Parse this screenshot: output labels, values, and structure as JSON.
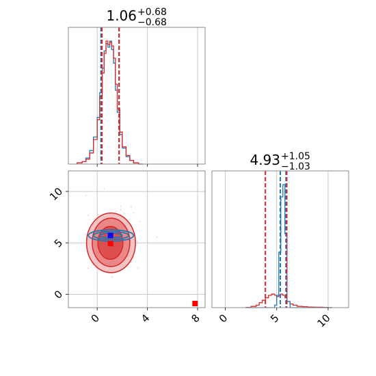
{
  "chart_data": {
    "type": "corner",
    "parameters": [
      "param_0",
      "param_1"
    ],
    "colors": {
      "blue": "#1f77b4",
      "red": "#d62728",
      "marker_blue": "#0000ff",
      "marker_red": "#ff0000",
      "grid": "#c8c8c8"
    },
    "titles": [
      {
        "base": "1.06",
        "sup": "+0.68",
        "sub": "−0.68"
      },
      {
        "base": "4.93",
        "sup": "+1.05",
        "sub": "−1.03"
      }
    ],
    "x_ticks_p0": [
      "0",
      "4",
      "8"
    ],
    "x_ticks_p1": [
      "0",
      "5",
      "10"
    ],
    "y_ticks_p1": [
      "0",
      "5",
      "10"
    ],
    "ranges": {
      "p0": [
        -2.3,
        8.6
      ],
      "p1": [
        -1.3,
        12.0
      ]
    },
    "marginal_p0": {
      "x": [
        -1.6,
        -1.2,
        -0.9,
        -0.6,
        -0.3,
        0.0,
        0.2,
        0.4,
        0.55,
        0.7,
        0.85,
        1.0,
        1.15,
        1.3,
        1.45,
        1.6,
        1.8,
        2.0,
        2.3,
        2.6,
        2.9,
        3.3
      ],
      "series": [
        {
          "name": "",
          "color": "blue",
          "values": [
            0.01,
            0.02,
            0.05,
            0.11,
            0.22,
            0.38,
            0.58,
            0.78,
            0.92,
            0.98,
            0.95,
            1.0,
            0.93,
            0.82,
            0.6,
            0.42,
            0.24,
            0.13,
            0.06,
            0.03,
            0.01,
            0.0
          ]
        },
        {
          "name": "",
          "color": "red",
          "values": [
            0.01,
            0.02,
            0.04,
            0.09,
            0.2,
            0.36,
            0.55,
            0.74,
            0.9,
            1.0,
            0.97,
            0.99,
            0.96,
            0.86,
            0.65,
            0.45,
            0.26,
            0.14,
            0.07,
            0.03,
            0.01,
            0.0
          ]
        }
      ],
      "quantiles": {
        "blue": [
          0.3,
          1.75
        ],
        "red": [
          0.38,
          1.74
        ]
      }
    },
    "marginal_p1": {
      "x": [
        2.0,
        2.5,
        3.0,
        3.3,
        3.6,
        3.9,
        4.2,
        4.5,
        4.8,
        5.0,
        5.2,
        5.4,
        5.6,
        5.8,
        6.0,
        6.3,
        6.6,
        7.0,
        7.5,
        8.0,
        8.5,
        9.0,
        9.5,
        10.0
      ],
      "series": [
        {
          "name": "",
          "color": "red",
          "values": [
            0.002,
            0.01,
            0.02,
            0.04,
            0.06,
            0.08,
            0.1,
            0.11,
            0.1,
            0.09,
            0.1,
            0.11,
            0.1,
            0.08,
            0.05,
            0.03,
            0.02,
            0.01,
            0.008,
            0.005,
            0.004,
            0.003,
            0.002,
            0.0
          ]
        },
        {
          "name": "",
          "color": "blue",
          "values": [
            0.0,
            0.0,
            0.0,
            0.0,
            0.0,
            0.0,
            0.0,
            0.0,
            0.02,
            0.1,
            0.45,
            0.9,
            1.0,
            0.6,
            0.05,
            0.0,
            0.0,
            0.0,
            0.0,
            0.0,
            0.0,
            0.0,
            0.0,
            0.0
          ]
        }
      ],
      "quantiles": {
        "blue": [
          5.35,
          5.9
        ],
        "red": [
          3.9,
          5.98
        ]
      }
    },
    "joint_p0_p1": {
      "red_contours": [
        {
          "center": [
            1.1,
            5.0
          ],
          "radius": [
            1.95,
            2.9
          ],
          "level": 1
        },
        {
          "center": [
            1.1,
            5.05
          ],
          "radius": [
            1.5,
            2.35
          ],
          "level": 2
        },
        {
          "center": [
            1.05,
            5.0
          ],
          "radius": [
            1.0,
            1.6
          ],
          "level": 3
        }
      ],
      "blue_contours": [
        {
          "center": [
            1.1,
            5.72
          ],
          "radius": [
            1.8,
            0.55
          ]
        },
        {
          "center": [
            1.1,
            5.72
          ],
          "radius": [
            1.4,
            0.38
          ]
        },
        {
          "center": [
            1.1,
            5.72
          ],
          "radius": [
            0.9,
            0.22
          ]
        }
      ],
      "red_marker": [
        1.06,
        4.93
      ],
      "blue_marker": [
        1.06,
        5.72
      ],
      "red_square_marker": [
        7.8,
        -0.9
      ]
    },
    "grid": true
  }
}
